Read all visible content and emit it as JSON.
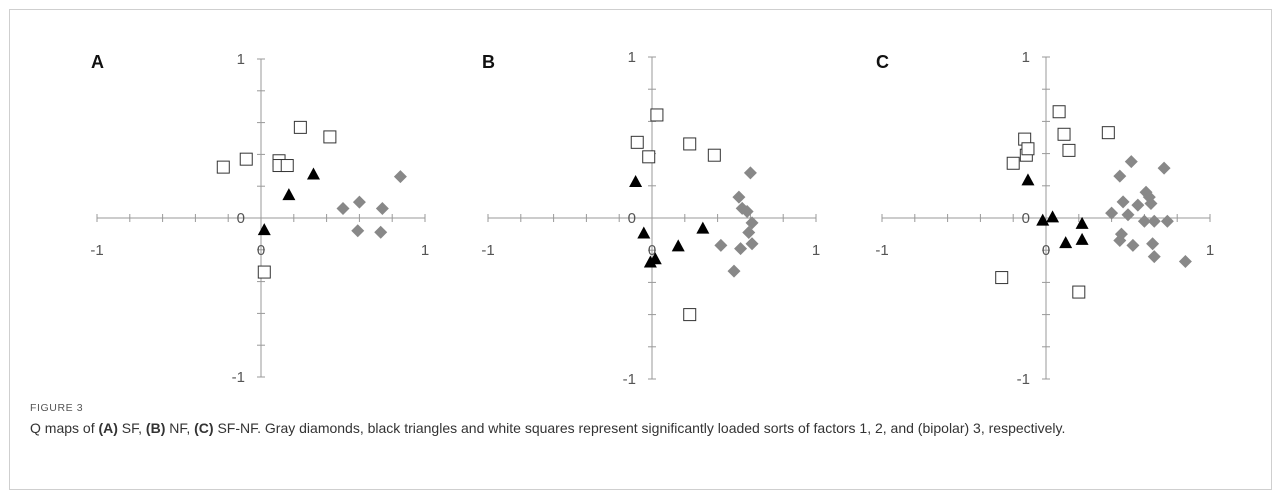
{
  "caption": {
    "label": "FIGURE 3",
    "segments": [
      {
        "text": "Q maps of ",
        "bold": false
      },
      {
        "text": "(A)",
        "bold": true
      },
      {
        "text": " SF, ",
        "bold": false
      },
      {
        "text": "(B)",
        "bold": true
      },
      {
        "text": " NF, ",
        "bold": false
      },
      {
        "text": "(C)",
        "bold": true
      },
      {
        "text": " SF-NF. Gray diamonds, black triangles and white squares represent significantly loaded sorts of factors 1, 2, and (bipolar) 3, respectively.",
        "bold": false
      }
    ]
  },
  "colors": {
    "axis": "#999999",
    "diamond": "#888888",
    "triangle": "#000000",
    "square_stroke": "#333333",
    "square_fill": "#ffffff"
  },
  "chart_data": [
    {
      "type": "scatter",
      "panel": "A",
      "xlim": [
        -1,
        1
      ],
      "ylim": [
        -1,
        1
      ],
      "x_ticks": [
        "-1",
        "0",
        "1"
      ],
      "y_ticks": [
        "1",
        "0",
        "-1"
      ],
      "series": [
        {
          "marker": "diamond",
          "points": [
            [
              0.5,
              0.06
            ],
            [
              0.6,
              0.1
            ],
            [
              0.74,
              0.06
            ],
            [
              0.85,
              0.26
            ],
            [
              0.59,
              -0.08
            ],
            [
              0.73,
              -0.09
            ]
          ]
        },
        {
          "marker": "triangle",
          "points": [
            [
              0.32,
              0.28
            ],
            [
              0.17,
              0.15
            ],
            [
              0.02,
              -0.07
            ]
          ]
        },
        {
          "marker": "square",
          "points": [
            [
              -0.23,
              0.32
            ],
            [
              -0.09,
              0.37
            ],
            [
              0.11,
              0.36
            ],
            [
              0.11,
              0.33
            ],
            [
              0.16,
              0.33
            ],
            [
              0.24,
              0.57
            ],
            [
              0.42,
              0.51
            ],
            [
              0.02,
              -0.34
            ]
          ]
        }
      ]
    },
    {
      "type": "scatter",
      "panel": "B",
      "xlim": [
        -1,
        1
      ],
      "ylim": [
        -1,
        1
      ],
      "x_ticks": [
        "-1",
        "0",
        "1"
      ],
      "y_ticks": [
        "1",
        "0",
        "-1"
      ],
      "series": [
        {
          "marker": "diamond",
          "points": [
            [
              0.6,
              0.28
            ],
            [
              0.53,
              0.13
            ],
            [
              0.55,
              0.06
            ],
            [
              0.58,
              0.04
            ],
            [
              0.61,
              -0.03
            ],
            [
              0.59,
              -0.09
            ],
            [
              0.42,
              -0.17
            ],
            [
              0.54,
              -0.19
            ],
            [
              0.61,
              -0.16
            ],
            [
              0.5,
              -0.33
            ]
          ]
        },
        {
          "marker": "triangle",
          "points": [
            [
              -0.1,
              0.23
            ],
            [
              -0.05,
              -0.09
            ],
            [
              0.16,
              -0.17
            ],
            [
              0.31,
              -0.06
            ],
            [
              0.02,
              -0.25
            ],
            [
              -0.01,
              -0.27
            ]
          ]
        },
        {
          "marker": "square",
          "points": [
            [
              -0.09,
              0.47
            ],
            [
              -0.02,
              0.38
            ],
            [
              0.03,
              0.64
            ],
            [
              0.23,
              0.46
            ],
            [
              0.38,
              0.39
            ],
            [
              0.23,
              -0.6
            ]
          ]
        }
      ]
    },
    {
      "type": "scatter",
      "panel": "C",
      "xlim": [
        -1,
        1
      ],
      "ylim": [
        -1,
        1
      ],
      "x_ticks": [
        "-1",
        "0",
        "1"
      ],
      "y_ticks": [
        "1",
        "0",
        "-1"
      ],
      "series": [
        {
          "marker": "diamond",
          "points": [
            [
              0.45,
              0.26
            ],
            [
              0.47,
              0.1
            ],
            [
              0.52,
              0.35
            ],
            [
              0.56,
              0.08
            ],
            [
              0.61,
              0.16
            ],
            [
              0.63,
              0.13
            ],
            [
              0.64,
              0.09
            ],
            [
              0.72,
              0.31
            ],
            [
              0.4,
              0.03
            ],
            [
              0.5,
              0.02
            ],
            [
              0.6,
              -0.02
            ],
            [
              0.66,
              -0.02
            ],
            [
              0.74,
              -0.02
            ],
            [
              0.46,
              -0.1
            ],
            [
              0.45,
              -0.14
            ],
            [
              0.53,
              -0.17
            ],
            [
              0.65,
              -0.16
            ],
            [
              0.66,
              -0.24
            ],
            [
              0.85,
              -0.27
            ]
          ]
        },
        {
          "marker": "triangle",
          "points": [
            [
              -0.11,
              0.24
            ],
            [
              -0.02,
              -0.01
            ],
            [
              0.04,
              0.01
            ],
            [
              0.12,
              -0.15
            ],
            [
              0.22,
              -0.03
            ],
            [
              0.22,
              -0.13
            ]
          ]
        },
        {
          "marker": "square",
          "points": [
            [
              -0.2,
              0.34
            ],
            [
              -0.13,
              0.49
            ],
            [
              -0.12,
              0.39
            ],
            [
              -0.11,
              0.43
            ],
            [
              0.08,
              0.66
            ],
            [
              0.11,
              0.52
            ],
            [
              0.14,
              0.42
            ],
            [
              0.38,
              0.53
            ],
            [
              -0.27,
              -0.37
            ],
            [
              0.2,
              -0.46
            ]
          ]
        }
      ]
    }
  ]
}
